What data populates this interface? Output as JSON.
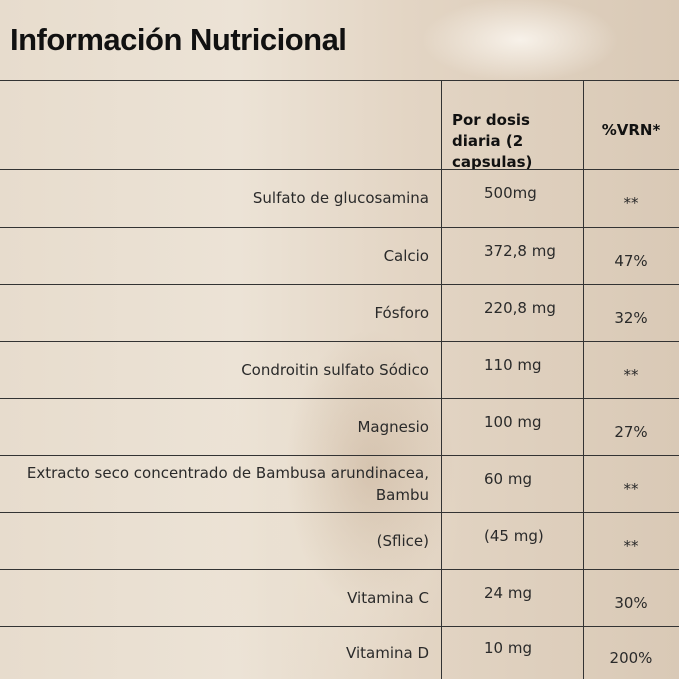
{
  "header": {
    "title": "Información Nutricional"
  },
  "table": {
    "columns": [
      "",
      "Por dosis diaria (2 capsulas)",
      "%VRN*"
    ],
    "rows": [
      [
        "Sulfato de glucosamina",
        "500mg",
        "**"
      ],
      [
        "Calcio",
        "372,8 mg",
        "47%"
      ],
      [
        "Fósforo",
        "220,8 mg",
        "32%"
      ],
      [
        "Condroitin sulfato Sódico",
        "110 mg",
        "**"
      ],
      [
        "Magnesio",
        "100 mg",
        "27%"
      ],
      [
        "Extracto seco concentrado de Bambusa arundinacea, Bambu",
        "60 mg",
        "**"
      ],
      [
        "(Sflice)",
        "(45 mg)",
        "**"
      ],
      [
        "Vitamina C",
        "24 mg",
        "30%"
      ],
      [
        "Vitamina D",
        "10 mg",
        "200%"
      ]
    ]
  }
}
